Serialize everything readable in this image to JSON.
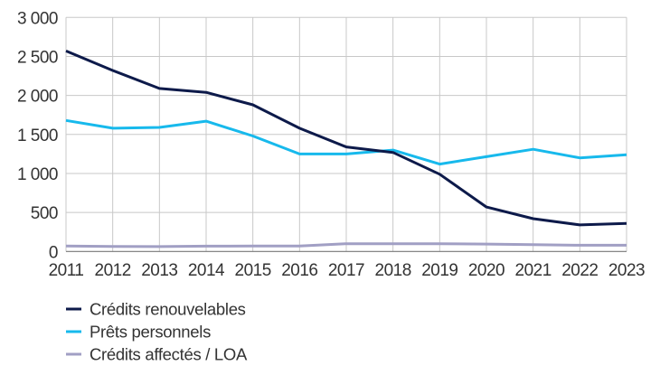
{
  "chart_data": {
    "type": "line",
    "title": "",
    "xlabel": "",
    "ylabel": "",
    "x": [
      2011,
      2012,
      2013,
      2014,
      2015,
      2016,
      2017,
      2018,
      2019,
      2020,
      2021,
      2022,
      2023
    ],
    "ylim": [
      0,
      3000
    ],
    "yticks": [
      0,
      500,
      1000,
      1500,
      2000,
      2500,
      3000
    ],
    "ytick_labels": [
      "0",
      "500",
      "1 000",
      "1 500",
      "2 000",
      "2 500",
      "3 000"
    ],
    "grid": true,
    "legend_position": "bottom-left",
    "series": [
      {
        "name": "Crédits renouvelables",
        "color": "#0d1a4a",
        "values": [
          2570,
          2320,
          2090,
          2040,
          1880,
          1580,
          1340,
          1270,
          990,
          570,
          420,
          340,
          360
        ]
      },
      {
        "name": "Prêts personnels",
        "color": "#17b9ec",
        "values": [
          1680,
          1580,
          1590,
          1670,
          1480,
          1250,
          1250,
          1300,
          1120,
          1215,
          1310,
          1200,
          1240
        ]
      },
      {
        "name": "Crédits affectés / LOA",
        "color": "#a19fc4",
        "values": [
          70,
          65,
          62,
          68,
          70,
          70,
          100,
          100,
          100,
          95,
          88,
          80,
          80
        ]
      }
    ]
  }
}
